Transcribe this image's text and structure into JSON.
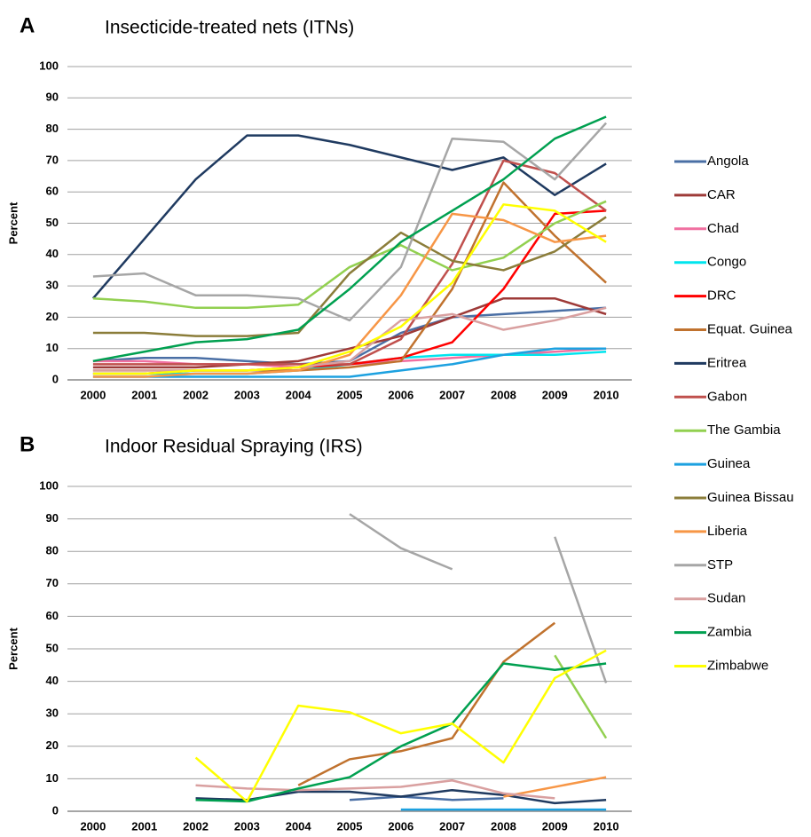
{
  "chart_data": [
    {
      "type": "line",
      "label": "A",
      "title": "Insecticide-treated nets (ITNs)",
      "y_label": "Percent",
      "categories": [
        "2000",
        "2001",
        "2002",
        "2003",
        "2004",
        "2005",
        "2006",
        "2007",
        "2008",
        "2009",
        "2010"
      ],
      "ylim": [
        0,
        100
      ],
      "yticks": [
        0,
        10,
        20,
        30,
        40,
        50,
        60,
        70,
        80,
        90,
        100
      ],
      "grid": true,
      "series": [
        {
          "name": "Angola",
          "color": "#4a6fa5",
          "values": [
            6,
            7,
            7,
            6,
            5,
            6,
            15,
            20,
            21,
            22,
            23
          ]
        },
        {
          "name": "CAR",
          "color": "#9e3a38",
          "values": [
            4,
            4,
            4,
            5,
            6,
            10,
            14,
            20,
            26,
            26,
            21
          ]
        },
        {
          "name": "Chad",
          "color": "#f06fa0",
          "values": [
            6,
            6,
            5,
            5,
            4,
            5,
            6,
            7,
            8,
            9,
            10
          ]
        },
        {
          "name": "Congo",
          "color": "#00e5ee",
          "values": [
            2,
            2,
            2,
            2,
            3,
            5,
            7,
            8,
            8,
            8,
            9
          ]
        },
        {
          "name": "DRC",
          "color": "#ff0000",
          "values": [
            2,
            2,
            3,
            3,
            4,
            5,
            7,
            12,
            29,
            53,
            54
          ]
        },
        {
          "name": "Equat. Guinea",
          "color": "#c0722e",
          "values": [
            3,
            3,
            3,
            3,
            3,
            4,
            6,
            29,
            63,
            46,
            31
          ]
        },
        {
          "name": "Eritrea",
          "color": "#1f3a60",
          "values": [
            26,
            45,
            64,
            78,
            78,
            75,
            71,
            67,
            71,
            59,
            69
          ]
        },
        {
          "name": "Gabon",
          "color": "#c0504d",
          "values": [
            5,
            5,
            5,
            5,
            5,
            5,
            13,
            37,
            70,
            66,
            54
          ]
        },
        {
          "name": "The Gambia",
          "color": "#92d050",
          "values": [
            26,
            25,
            23,
            23,
            24,
            36,
            43,
            35,
            39,
            50,
            57
          ]
        },
        {
          "name": "Guinea",
          "color": "#1da1e0",
          "values": [
            1,
            1,
            1,
            1,
            1,
            1,
            3,
            5,
            8,
            10,
            10
          ]
        },
        {
          "name": "Guinea Bissau",
          "color": "#8b7d3a",
          "values": [
            15,
            15,
            14,
            14,
            15,
            34,
            47,
            38,
            35,
            41,
            52
          ]
        },
        {
          "name": "Liberia",
          "color": "#f79646",
          "values": [
            1,
            1,
            2,
            2,
            3,
            8,
            27,
            53,
            51,
            44,
            46
          ]
        },
        {
          "name": "STP",
          "color": "#a6a6a6",
          "values": [
            33,
            34,
            27,
            27,
            26,
            19,
            36,
            77,
            76,
            64,
            82
          ]
        },
        {
          "name": "Sudan",
          "color": "#d9a0a0",
          "values": [
            3,
            3,
            3,
            3,
            4,
            6,
            19,
            21,
            16,
            19,
            23
          ]
        },
        {
          "name": "Zambia",
          "color": "#00a050",
          "values": [
            6,
            9,
            12,
            13,
            16,
            29,
            44,
            54,
            64,
            77,
            84
          ]
        },
        {
          "name": "Zimbabwe",
          "color": "#ffff00",
          "values": [
            2,
            2,
            3,
            3,
            4,
            9,
            17,
            31,
            56,
            54,
            44
          ]
        }
      ]
    },
    {
      "type": "line",
      "label": "B",
      "title": "Indoor Residual Spraying (IRS)",
      "y_label": "Percent",
      "categories": [
        "2000",
        "2001",
        "2002",
        "2003",
        "2004",
        "2005",
        "2006",
        "2007",
        "2008",
        "2009",
        "2010"
      ],
      "ylim": [
        0,
        100
      ],
      "yticks": [
        0,
        10,
        20,
        30,
        40,
        50,
        60,
        70,
        80,
        90,
        100
      ],
      "grid": true,
      "series": [
        {
          "values": [
            null,
            null,
            null,
            null,
            null,
            3.5,
            4.5,
            3.5,
            4,
            null,
            null
          ]
        },
        {
          "values": [
            null,
            null,
            null,
            null,
            null,
            null,
            null,
            null,
            null,
            null,
            null
          ]
        },
        {
          "values": [
            null,
            null,
            null,
            null,
            null,
            null,
            null,
            null,
            null,
            null,
            null
          ]
        },
        {
          "values": [
            null,
            null,
            null,
            null,
            null,
            null,
            null,
            null,
            null,
            null,
            null
          ]
        },
        {
          "values": [
            null,
            null,
            null,
            null,
            null,
            null,
            null,
            null,
            null,
            null,
            null
          ]
        },
        {
          "values": [
            null,
            null,
            null,
            null,
            8,
            16,
            18.5,
            22.5,
            46,
            58,
            null
          ]
        },
        {
          "values": [
            null,
            null,
            4,
            3.5,
            6,
            6,
            4.5,
            6.5,
            5,
            2.5,
            3.5
          ]
        },
        {
          "values": [
            null,
            null,
            null,
            null,
            null,
            null,
            null,
            null,
            null,
            null,
            null
          ]
        },
        {
          "values": [
            null,
            null,
            null,
            null,
            null,
            null,
            null,
            null,
            null,
            48,
            22.5
          ]
        },
        {
          "values": [
            null,
            null,
            null,
            null,
            null,
            null,
            0.5,
            0.5,
            0.5,
            0.5,
            0.5
          ]
        },
        {
          "values": [
            null,
            null,
            null,
            null,
            null,
            null,
            null,
            null,
            null,
            null,
            null
          ]
        },
        {
          "values": [
            null,
            null,
            null,
            null,
            null,
            null,
            null,
            null,
            4.5,
            7.5,
            10.5
          ]
        },
        {
          "values": [
            null,
            null,
            null,
            null,
            null,
            91.5,
            81,
            74.5,
            null,
            84.5,
            39.5
          ]
        },
        {
          "values": [
            null,
            null,
            8,
            7,
            6.5,
            7,
            7.5,
            9.5,
            5.5,
            4,
            null
          ]
        },
        {
          "values": [
            null,
            null,
            3.5,
            3,
            7,
            10.5,
            20,
            27,
            45.5,
            43.5,
            45.5
          ]
        },
        {
          "values": [
            null,
            null,
            16.5,
            3,
            32.5,
            30.5,
            24,
            27,
            15,
            41,
            49.5
          ]
        }
      ]
    }
  ]
}
